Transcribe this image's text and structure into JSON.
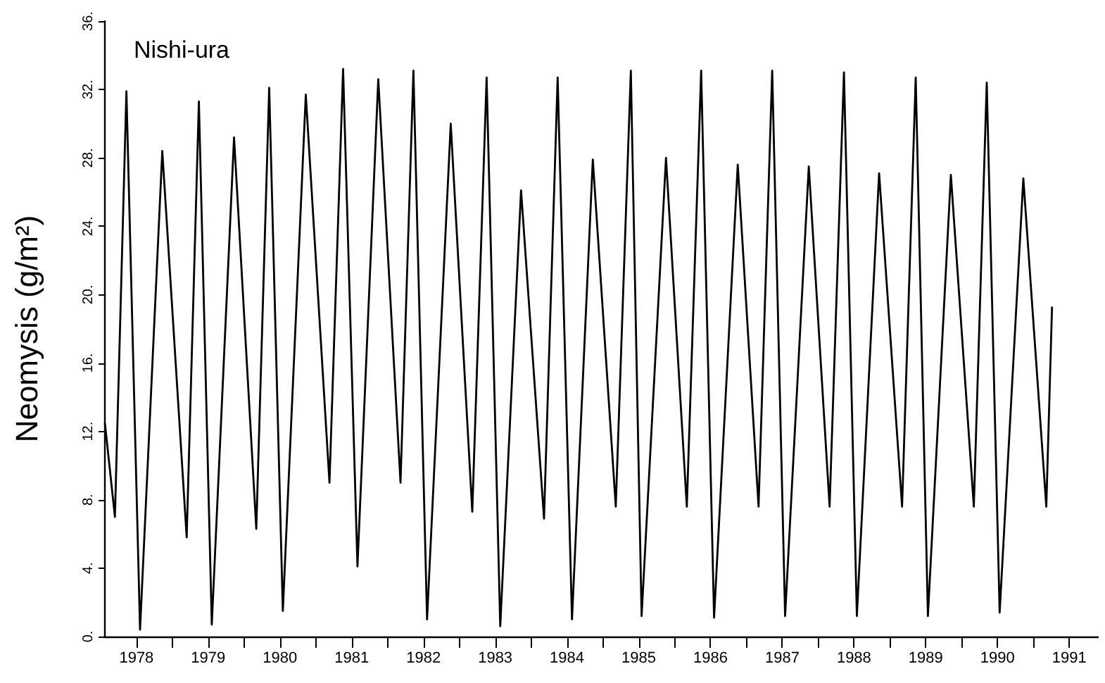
{
  "chart_data": {
    "type": "line",
    "title": "Nishi-ura",
    "ylabel": "Neomysis (g/m²)",
    "x": [
      1978.06,
      1978.2,
      1978.36,
      1978.55,
      1978.86,
      1979.2,
      1979.37,
      1979.55,
      1979.86,
      1980.17,
      1980.35,
      1980.54,
      1980.86,
      1981.19,
      1981.38,
      1981.58,
      1981.87,
      1982.18,
      1982.36,
      1982.55,
      1982.88,
      1983.18,
      1983.38,
      1983.57,
      1983.86,
      1984.18,
      1984.37,
      1984.57,
      1984.86,
      1985.18,
      1985.39,
      1985.54,
      1985.88,
      1986.17,
      1986.37,
      1986.55,
      1986.88,
      1987.17,
      1987.36,
      1987.54,
      1987.87,
      1988.16,
      1988.36,
      1988.54,
      1988.85,
      1989.17,
      1989.36,
      1989.53,
      1989.85,
      1990.17,
      1990.35,
      1990.53,
      1990.86,
      1991.18,
      1991.26
    ],
    "series": [
      {
        "color": "#000000",
        "values": [
          12.5,
          7.0,
          31.9,
          0.4,
          28.4,
          5.8,
          31.3,
          0.7,
          29.2,
          6.3,
          32.1,
          1.5,
          31.7,
          9.0,
          33.2,
          4.1,
          32.6,
          9.0,
          33.1,
          1.0,
          30.0,
          7.3,
          32.7,
          0.6,
          26.1,
          6.9,
          32.7,
          1.0,
          27.9,
          7.6,
          33.1,
          1.2,
          28.0,
          7.6,
          33.1,
          1.1,
          27.6,
          7.6,
          33.1,
          1.2,
          27.5,
          7.6,
          33.0,
          1.2,
          27.1,
          7.6,
          32.7,
          1.2,
          27.0,
          7.6,
          32.4,
          1.4,
          26.8,
          7.6,
          19.3
        ]
      }
    ],
    "xlim": [
      1978.05,
      1991.9
    ],
    "xticks": [
      {
        "value": 1978.5,
        "label": "1978"
      },
      {
        "value": 1979,
        "label": null
      },
      {
        "value": 1979.5,
        "label": "1979"
      },
      {
        "value": 1980,
        "label": null
      },
      {
        "value": 1980.5,
        "label": "1980"
      },
      {
        "value": 1981,
        "label": null
      },
      {
        "value": 1981.5,
        "label": "1981"
      },
      {
        "value": 1982,
        "label": null
      },
      {
        "value": 1982.5,
        "label": "1982"
      },
      {
        "value": 1983,
        "label": null
      },
      {
        "value": 1983.5,
        "label": "1983"
      },
      {
        "value": 1984,
        "label": null
      },
      {
        "value": 1984.5,
        "label": "1984"
      },
      {
        "value": 1985,
        "label": null
      },
      {
        "value": 1985.5,
        "label": "1985"
      },
      {
        "value": 1986,
        "label": null
      },
      {
        "value": 1986.5,
        "label": "1986"
      },
      {
        "value": 1987,
        "label": null
      },
      {
        "value": 1987.5,
        "label": "1987"
      },
      {
        "value": 1988,
        "label": null
      },
      {
        "value": 1988.5,
        "label": "1988"
      },
      {
        "value": 1989,
        "label": null
      },
      {
        "value": 1989.5,
        "label": "1989"
      },
      {
        "value": 1990,
        "label": null
      },
      {
        "value": 1990.5,
        "label": "1990"
      },
      {
        "value": 1991,
        "label": null
      },
      {
        "value": 1991.5,
        "label": "1991"
      }
    ],
    "ylim": [
      0,
      36
    ],
    "yticks": [
      {
        "value": 0,
        "label": "0."
      },
      {
        "value": 4,
        "label": "4."
      },
      {
        "value": 8,
        "label": "8."
      },
      {
        "value": 12,
        "label": "12."
      },
      {
        "value": 16,
        "label": "16."
      },
      {
        "value": 20,
        "label": "20."
      },
      {
        "value": 24,
        "label": "24."
      },
      {
        "value": 28,
        "label": "28."
      },
      {
        "value": 32,
        "label": "32."
      },
      {
        "value": 36,
        "label": "36."
      }
    ],
    "marker": "none",
    "line_style": "solid"
  }
}
